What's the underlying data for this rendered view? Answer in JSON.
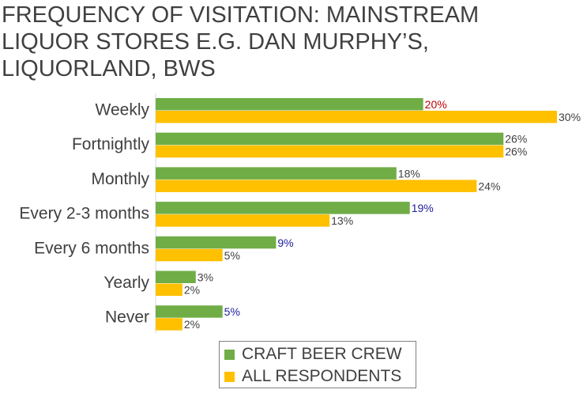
{
  "title_lines": [
    "FREQUENCY OF VISITATION: MAINSTREAM",
    "LIQUOR STORES E.G. DAN MURPHY’S,",
    "LIQUORLAND, BWS"
  ],
  "colors": {
    "craft": "#70ad47",
    "all": "#ffc000",
    "text": "#404040",
    "highlight_red": "#c00000",
    "highlight_blue": "#2020a0"
  },
  "chart_data": {
    "type": "bar",
    "orientation": "horizontal",
    "title": "FREQUENCY OF VISITATION: MAINSTREAM LIQUOR STORES E.G. DAN MURPHY’S, LIQUORLAND, BWS",
    "categories": [
      "Weekly",
      "Fortnightly",
      "Monthly",
      "Every 2-3 months",
      "Every 6 months",
      "Yearly",
      "Never"
    ],
    "series": [
      {
        "name": "CRAFT BEER CREW",
        "values": [
          20,
          26,
          18,
          19,
          9,
          3,
          5
        ],
        "labels": [
          "20%",
          "26%",
          "18%",
          "19%",
          "9%",
          "3%",
          "5%"
        ],
        "label_colors": [
          "red",
          "default",
          "default",
          "blue",
          "blue",
          "default",
          "blue"
        ]
      },
      {
        "name": "ALL RESPONDENTS",
        "values": [
          30,
          26,
          24,
          13,
          5,
          2,
          2
        ],
        "labels": [
          "30%",
          "26%",
          "24%",
          "13%",
          "5%",
          "2%",
          "2%"
        ],
        "label_colors": [
          "default",
          "default",
          "default",
          "default",
          "default",
          "default",
          "default"
        ]
      }
    ],
    "xlim": [
      0,
      30
    ],
    "legend_position": "bottom",
    "grid": false
  }
}
